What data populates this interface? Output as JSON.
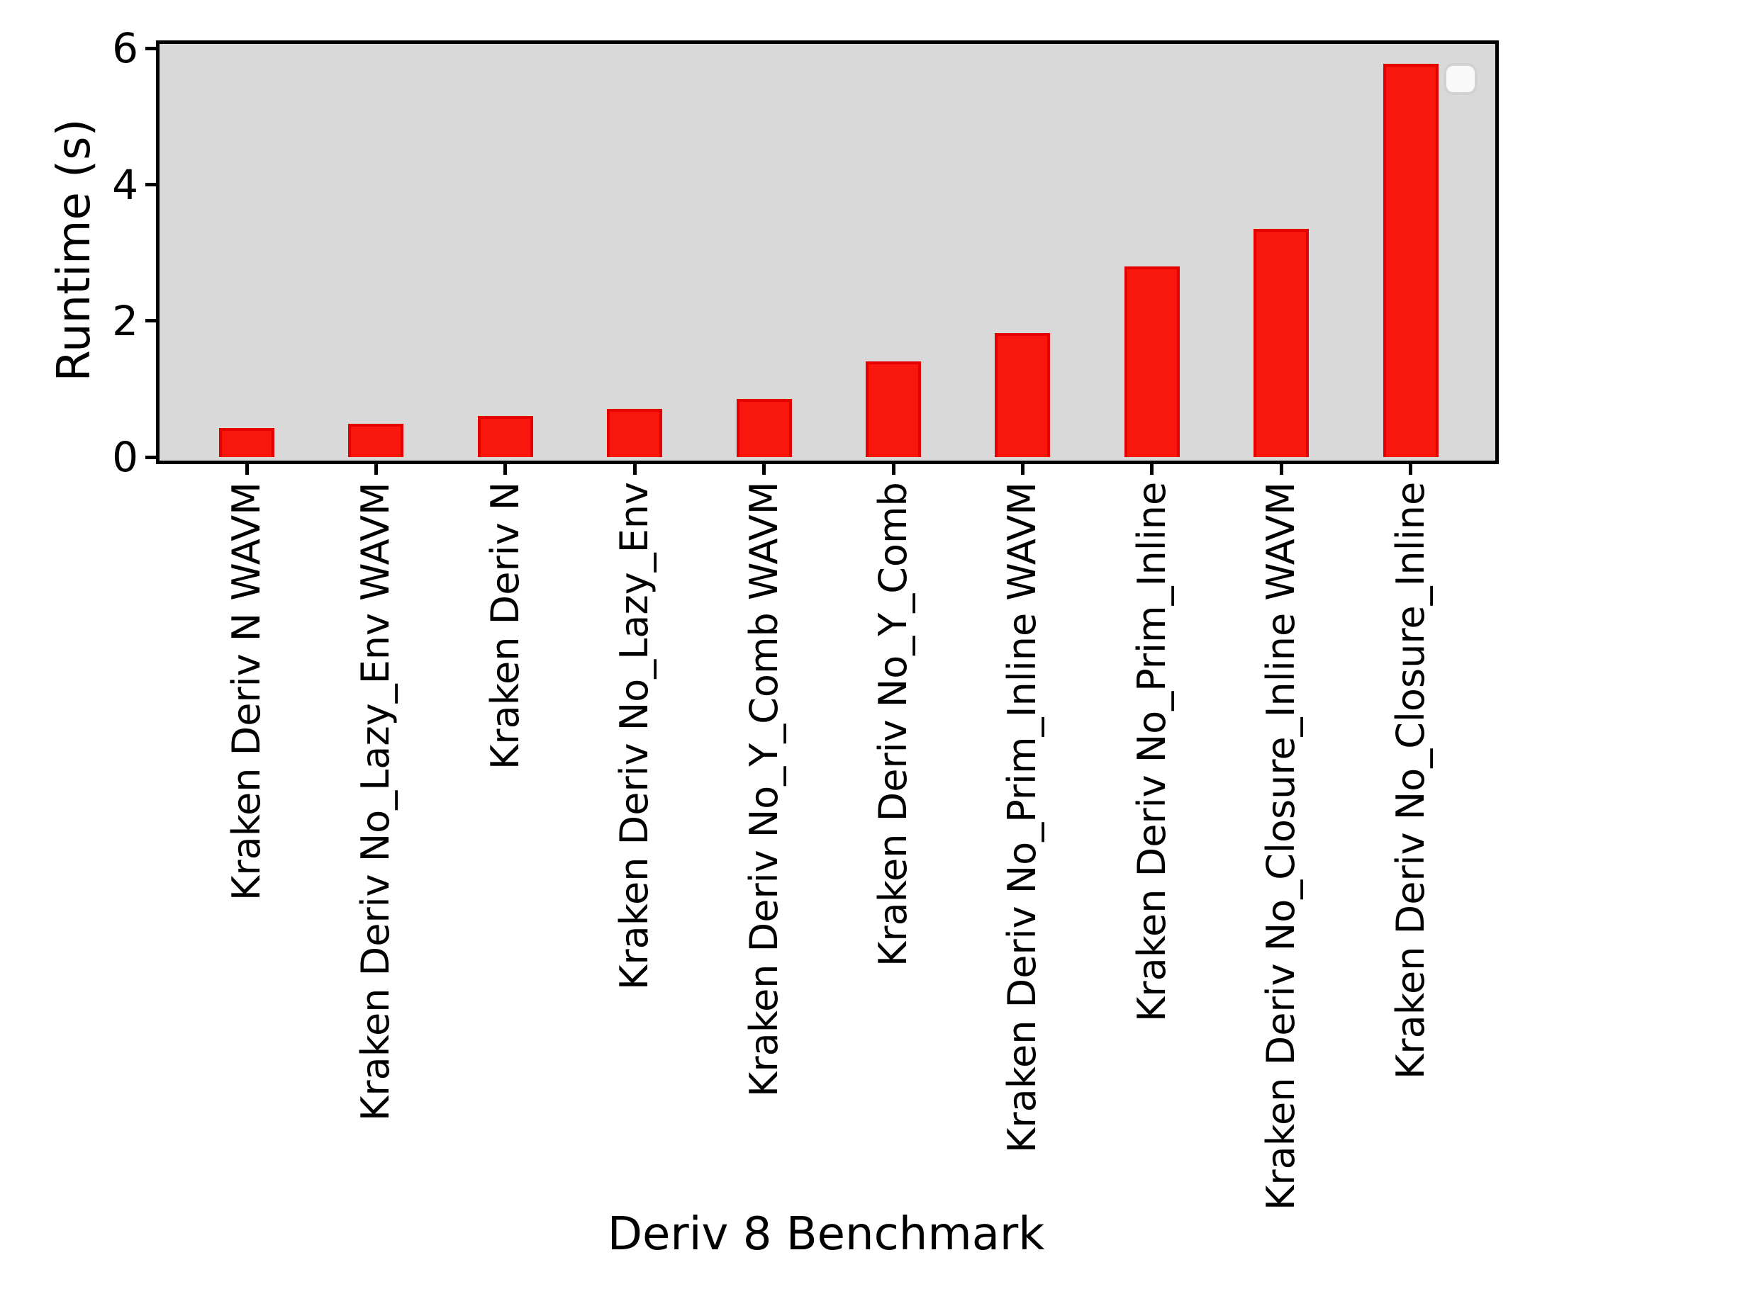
{
  "figure": {
    "background_color": "#ffffff",
    "plot_background_color": "#d9d9d9",
    "frame_color": "#000000"
  },
  "chart_data": {
    "type": "bar",
    "title": "",
    "xlabel": "Deriv 8 Benchmark",
    "ylabel": "Runtime (s)",
    "categories": [
      "Kraken Deriv N WAVM",
      "Kraken Deriv No_Lazy_Env WAVM",
      "Kraken Deriv N",
      "Kraken Deriv No_Lazy_Env",
      "Kraken Deriv No_Y_Comb WAVM",
      "Kraken Deriv No_Y_Comb",
      "Kraken Deriv No_Prim_Inline WAVM",
      "Kraken Deriv No_Prim_Inline",
      "Kraken Deriv No_Closure_Inline WAVM",
      "Kraken Deriv No_Closure_Inline"
    ],
    "values": [
      0.43,
      0.49,
      0.6,
      0.71,
      0.85,
      1.4,
      1.82,
      2.8,
      3.35,
      5.78
    ],
    "yticks": [
      0,
      2,
      4,
      6
    ],
    "ylim": [
      0,
      6.06
    ],
    "grid": false,
    "bar_color": "#f8170d",
    "bar_edge_color": "#e60000",
    "legend": "empty-box-top-right"
  }
}
